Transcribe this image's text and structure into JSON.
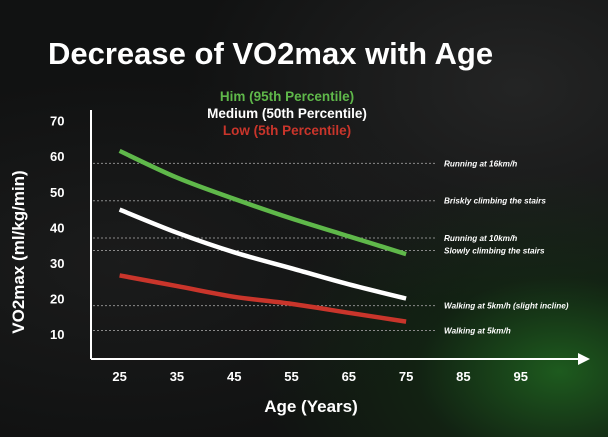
{
  "colors": {
    "background": "#111212",
    "axis": "#ffffff",
    "him": "#5fb84a",
    "medium": "#ffffff",
    "low": "#c9352b",
    "refline": "#8a8a8a"
  },
  "chart_data": {
    "type": "line",
    "title": "Decrease of VO2max with Age",
    "xlabel": "Age (Years)",
    "ylabel": "VO2max (ml/kg/min)",
    "xlim": [
      20,
      105
    ],
    "ylim": [
      3,
      73
    ],
    "x_ticks": [
      25,
      35,
      45,
      55,
      65,
      75,
      85,
      95
    ],
    "x_tick_labels": [
      "25",
      "35",
      "45",
      "55",
      "65",
      "75",
      "85",
      "95"
    ],
    "y_ticks": [
      10,
      20,
      30,
      40,
      50,
      60,
      70
    ],
    "y_tick_labels": [
      "10",
      "20",
      "30",
      "40",
      "50",
      "60",
      "70"
    ],
    "grid": false,
    "legend_position": "top-center",
    "series": [
      {
        "name": "Him (95th Percentile)",
        "color": "#5fb84a",
        "x": [
          25,
          35,
          45,
          55,
          65,
          75
        ],
        "y": [
          61.5,
          54,
          48,
          42.5,
          37.5,
          32.5
        ]
      },
      {
        "name": "Medium (50th Percentile)",
        "color": "#ffffff",
        "x": [
          25,
          35,
          45,
          55,
          65,
          75
        ],
        "y": [
          45,
          38.5,
          33,
          28.5,
          24,
          20
        ]
      },
      {
        "name": "Low (5th Percentile)",
        "color": "#c9352b",
        "x": [
          25,
          35,
          45,
          55,
          65,
          75
        ],
        "y": [
          26.5,
          23.5,
          20.5,
          18.5,
          16,
          13.5
        ]
      }
    ],
    "reference_lines": [
      {
        "label": "Running at 16km/h",
        "y": 58
      },
      {
        "label": "Briskly climbing the stairs",
        "y": 47.5
      },
      {
        "label": "Running at 10km/h",
        "y": 37
      },
      {
        "label": "Slowly climbing the stairs",
        "y": 33.5
      },
      {
        "label": "Walking at 5km/h (slight incline)",
        "y": 18
      },
      {
        "label": "Walking at 5km/h",
        "y": 11
      }
    ]
  }
}
